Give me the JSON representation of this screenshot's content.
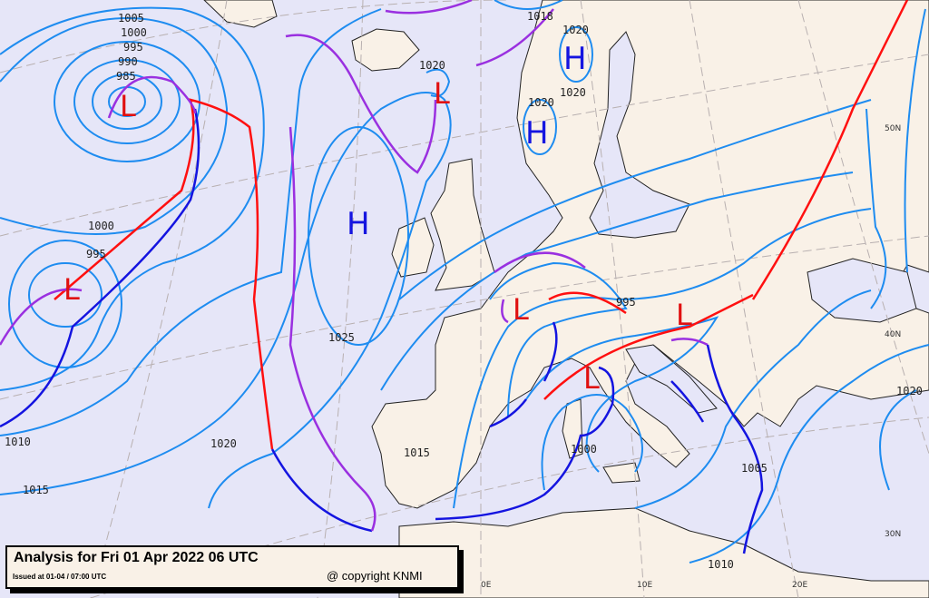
{
  "legend": {
    "title": "Analysis for Fri 01 Apr 2022 06 UTC",
    "issued": "Issued at 01-04 / 07:00 UTC",
    "copyright": "@ copyright KNMI"
  },
  "colors": {
    "sea": "#e6e6f8",
    "land": "#f9f1e7",
    "isobar": "#1e8cf0",
    "warm_front": "#ff1010",
    "cold_front": "#1414e0",
    "occluded_front": "#9a30e0"
  },
  "pressure_centers": [
    {
      "type": "L",
      "near": "south of Greenland"
    },
    {
      "type": "L",
      "near": "mid-Atlantic"
    },
    {
      "type": "H",
      "near": "west of Ireland"
    },
    {
      "type": "L",
      "near": "Iceland"
    },
    {
      "type": "H",
      "near": "northern Scandinavia"
    },
    {
      "type": "H",
      "near": "southern Norway"
    },
    {
      "type": "L",
      "near": "France"
    },
    {
      "type": "L",
      "near": "Italy"
    },
    {
      "type": "L",
      "near": "Hungary"
    }
  ],
  "isobar_labels": [
    "1005",
    "1000",
    "995",
    "990",
    "985",
    "1020",
    "1018",
    "1020",
    "1020",
    "1020",
    "1000",
    "995",
    "1010",
    "1015",
    "1020",
    "1025",
    "1015",
    "995",
    "1000",
    "1005",
    "1010",
    "1020"
  ],
  "grid_labels": [
    "50N",
    "40N",
    "30N",
    "0E",
    "10E",
    "20E"
  ]
}
